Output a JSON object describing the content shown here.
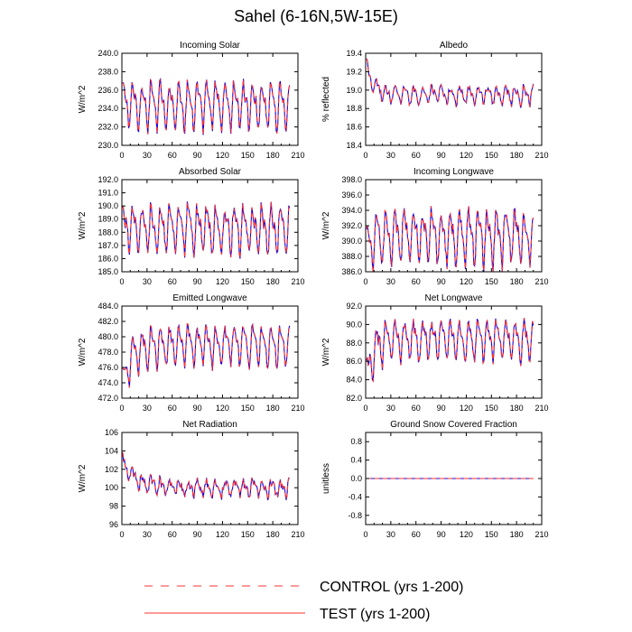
{
  "title": "Sahel (6-16N,5W-15E)",
  "colors": {
    "control": "#ff3030",
    "test": "#2200cc",
    "axis": "#000000"
  },
  "legend": {
    "control_label": "CONTROL (yrs 1-200)",
    "test_label": "TEST (yrs 1-200)"
  },
  "chart_data": [
    {
      "type": "line",
      "title": "Incoming Solar",
      "ylabel": "W/m^2",
      "xlim": [
        0,
        210
      ],
      "xticks": [
        0,
        30,
        60,
        90,
        120,
        150,
        180,
        210
      ],
      "ylim": [
        230,
        240
      ],
      "yticks": [
        230.0,
        232.0,
        234.0,
        236.0,
        238.0,
        240.0
      ],
      "ytick_labels": [
        "230.0",
        "232.0",
        "234.0",
        "236.0",
        "238.0",
        "240.0"
      ],
      "series_x_range": [
        1,
        200
      ],
      "base": 234.5,
      "cycle_amplitude": 2.8,
      "period": 11,
      "noise": 0.6,
      "trend_start": 0,
      "trend_tau": 10,
      "series": [
        {
          "name": "CONTROL (yrs 1-200)",
          "style": "dashed"
        },
        {
          "name": "TEST (yrs 1-200)",
          "style": "solid"
        }
      ]
    },
    {
      "type": "line",
      "title": "Albedo",
      "ylabel": "% reflected",
      "xlim": [
        0,
        210
      ],
      "xticks": [
        0,
        30,
        60,
        90,
        120,
        150,
        180,
        210
      ],
      "ylim": [
        18.4,
        19.4
      ],
      "yticks": [
        18.4,
        18.6,
        18.8,
        19.0,
        19.2,
        19.4
      ],
      "ytick_labels": [
        "18.4",
        "18.6",
        "18.8",
        "19.0",
        "19.2",
        "19.4"
      ],
      "series_x_range": [
        1,
        200
      ],
      "base": 18.95,
      "cycle_amplitude": 0.1,
      "period": 11,
      "noise": 0.04,
      "trend_start": 0.3,
      "trend_tau": 8,
      "series": [
        {
          "name": "CONTROL (yrs 1-200)",
          "style": "dashed"
        },
        {
          "name": "TEST (yrs 1-200)",
          "style": "solid"
        }
      ]
    },
    {
      "type": "line",
      "title": "Absorbed Solar",
      "ylabel": "W/m^2",
      "xlim": [
        0,
        210
      ],
      "xticks": [
        0,
        30,
        60,
        90,
        120,
        150,
        180,
        210
      ],
      "ylim": [
        185,
        192
      ],
      "yticks": [
        185.0,
        186.0,
        187.0,
        188.0,
        189.0,
        190.0,
        191.0,
        192.0
      ],
      "ytick_labels": [
        "185.0",
        "186.0",
        "187.0",
        "188.0",
        "189.0",
        "190.0",
        "191.0",
        "192.0"
      ],
      "series_x_range": [
        1,
        200
      ],
      "base": 188.3,
      "cycle_amplitude": 2.0,
      "period": 11,
      "noise": 0.5,
      "trend_start": 0,
      "trend_tau": 10,
      "series": [
        {
          "name": "CONTROL (yrs 1-200)",
          "style": "dashed"
        },
        {
          "name": "TEST (yrs 1-200)",
          "style": "solid"
        }
      ]
    },
    {
      "type": "line",
      "title": "Incoming Longwave",
      "ylabel": "W/m^2",
      "xlim": [
        0,
        210
      ],
      "xticks": [
        0,
        30,
        60,
        90,
        120,
        150,
        180,
        210
      ],
      "ylim": [
        386,
        398
      ],
      "yticks": [
        386.0,
        388.0,
        390.0,
        392.0,
        394.0,
        396.0,
        398.0
      ],
      "ytick_labels": [
        "386.0",
        "388.0",
        "390.0",
        "392.0",
        "394.0",
        "396.0",
        "398.0"
      ],
      "series_x_range": [
        1,
        200
      ],
      "base": 390.8,
      "cycle_amplitude": 3.8,
      "period": 11,
      "noise": 0.9,
      "trend_start": -2.5,
      "trend_tau": 8,
      "series": [
        {
          "name": "CONTROL (yrs 1-200)",
          "style": "dashed"
        },
        {
          "name": "TEST (yrs 1-200)",
          "style": "solid"
        }
      ]
    },
    {
      "type": "line",
      "title": "Emitted Longwave",
      "ylabel": "W/m^2",
      "xlim": [
        0,
        210
      ],
      "xticks": [
        0,
        30,
        60,
        90,
        120,
        150,
        180,
        210
      ],
      "ylim": [
        472,
        484
      ],
      "yticks": [
        472.0,
        474.0,
        476.0,
        478.0,
        480.0,
        482.0,
        484.0
      ],
      "ytick_labels": [
        "472.0",
        "474.0",
        "476.0",
        "478.0",
        "480.0",
        "482.0",
        "484.0"
      ],
      "series_x_range": [
        1,
        200
      ],
      "base": 479.0,
      "cycle_amplitude": 2.8,
      "period": 11,
      "noise": 0.6,
      "trend_start": -5.5,
      "trend_tau": 10,
      "series": [
        {
          "name": "CONTROL (yrs 1-200)",
          "style": "dashed"
        },
        {
          "name": "TEST (yrs 1-200)",
          "style": "solid"
        }
      ]
    },
    {
      "type": "line",
      "title": "Net Longwave",
      "ylabel": "W/m^2",
      "xlim": [
        0,
        210
      ],
      "xticks": [
        0,
        30,
        60,
        90,
        120,
        150,
        180,
        210
      ],
      "ylim": [
        82,
        92
      ],
      "yticks": [
        82.0,
        84.0,
        86.0,
        88.0,
        90.0,
        92.0
      ],
      "ytick_labels": [
        "82.0",
        "84.0",
        "86.0",
        "88.0",
        "90.0",
        "92.0"
      ],
      "series_x_range": [
        1,
        200
      ],
      "base": 88.4,
      "cycle_amplitude": 2.4,
      "period": 11,
      "noise": 0.6,
      "trend_start": -4.5,
      "trend_tau": 8,
      "series": [
        {
          "name": "CONTROL (yrs 1-200)",
          "style": "dashed"
        },
        {
          "name": "TEST (yrs 1-200)",
          "style": "solid"
        }
      ]
    },
    {
      "type": "line",
      "title": "Net Radiation",
      "ylabel": "W/m^2",
      "xlim": [
        0,
        210
      ],
      "xticks": [
        0,
        30,
        60,
        90,
        120,
        150,
        180,
        210
      ],
      "ylim": [
        96,
        106
      ],
      "yticks": [
        96,
        98,
        100,
        102,
        104,
        106
      ],
      "ytick_labels": [
        "96",
        "98",
        "100",
        "102",
        "104",
        "106"
      ],
      "series_x_range": [
        1,
        200
      ],
      "base": 100.0,
      "cycle_amplitude": 0.9,
      "period": 11,
      "noise": 0.5,
      "trend_start": 2.8,
      "trend_tau": 15,
      "series": [
        {
          "name": "CONTROL (yrs 1-200)",
          "style": "dashed"
        },
        {
          "name": "TEST (yrs 1-200)",
          "style": "solid"
        }
      ]
    },
    {
      "type": "line",
      "title": "Ground Snow Covered Fraction",
      "ylabel": "unitless",
      "xlim": [
        0,
        210
      ],
      "xticks": [
        0,
        30,
        60,
        90,
        120,
        150,
        180,
        210
      ],
      "ylim": [
        -1,
        1
      ],
      "yticks": [
        -0.8,
        -0.4,
        0.0,
        0.4,
        0.8
      ],
      "ytick_labels": [
        "-0.8",
        "-0.4",
        "0.0",
        "0.4",
        "0.8"
      ],
      "series_x_range": [
        1,
        200
      ],
      "base": 0.0,
      "cycle_amplitude": 0,
      "period": 11,
      "noise": 0,
      "trend_start": 0,
      "trend_tau": 10,
      "series": [
        {
          "name": "CONTROL (yrs 1-200)",
          "style": "dashed"
        },
        {
          "name": "TEST (yrs 1-200)",
          "style": "solid"
        }
      ]
    }
  ]
}
